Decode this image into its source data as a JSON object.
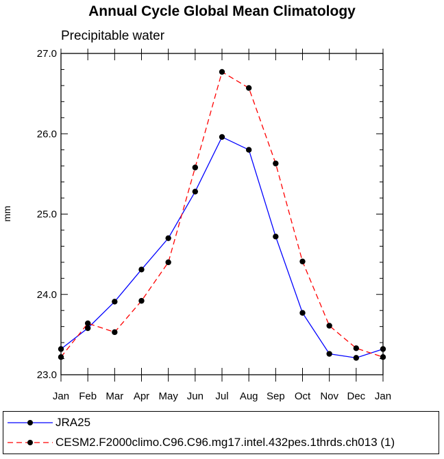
{
  "chart_data": {
    "type": "line",
    "title": "Annual Cycle Global Mean Climatology",
    "subtitle": "Precipitable water",
    "xlabel": "",
    "ylabel": "mm",
    "categories": [
      "Jan",
      "Feb",
      "Mar",
      "Apr",
      "May",
      "Jun",
      "Jul",
      "Aug",
      "Sep",
      "Oct",
      "Nov",
      "Dec",
      "Jan"
    ],
    "ylim": [
      23.0,
      27.0
    ],
    "yticks": [
      "23.0",
      "24.0",
      "25.0",
      "26.0",
      "27.0"
    ],
    "series": [
      {
        "name": "JRA25",
        "color": "#0000ff",
        "dash": "solid",
        "values": [
          23.32,
          23.58,
          23.91,
          24.31,
          24.7,
          25.28,
          25.96,
          25.8,
          24.72,
          23.77,
          23.26,
          23.21,
          23.32
        ]
      },
      {
        "name": "CESM2.F2000climo.C96.C96.mg17.intel.432pes.1thrds.ch013 (1)",
        "color": "#ff0000",
        "dash": "dashed",
        "values": [
          23.22,
          23.64,
          23.53,
          23.92,
          24.4,
          25.58,
          26.77,
          26.57,
          25.63,
          24.41,
          23.61,
          23.33,
          23.22
        ]
      }
    ]
  }
}
